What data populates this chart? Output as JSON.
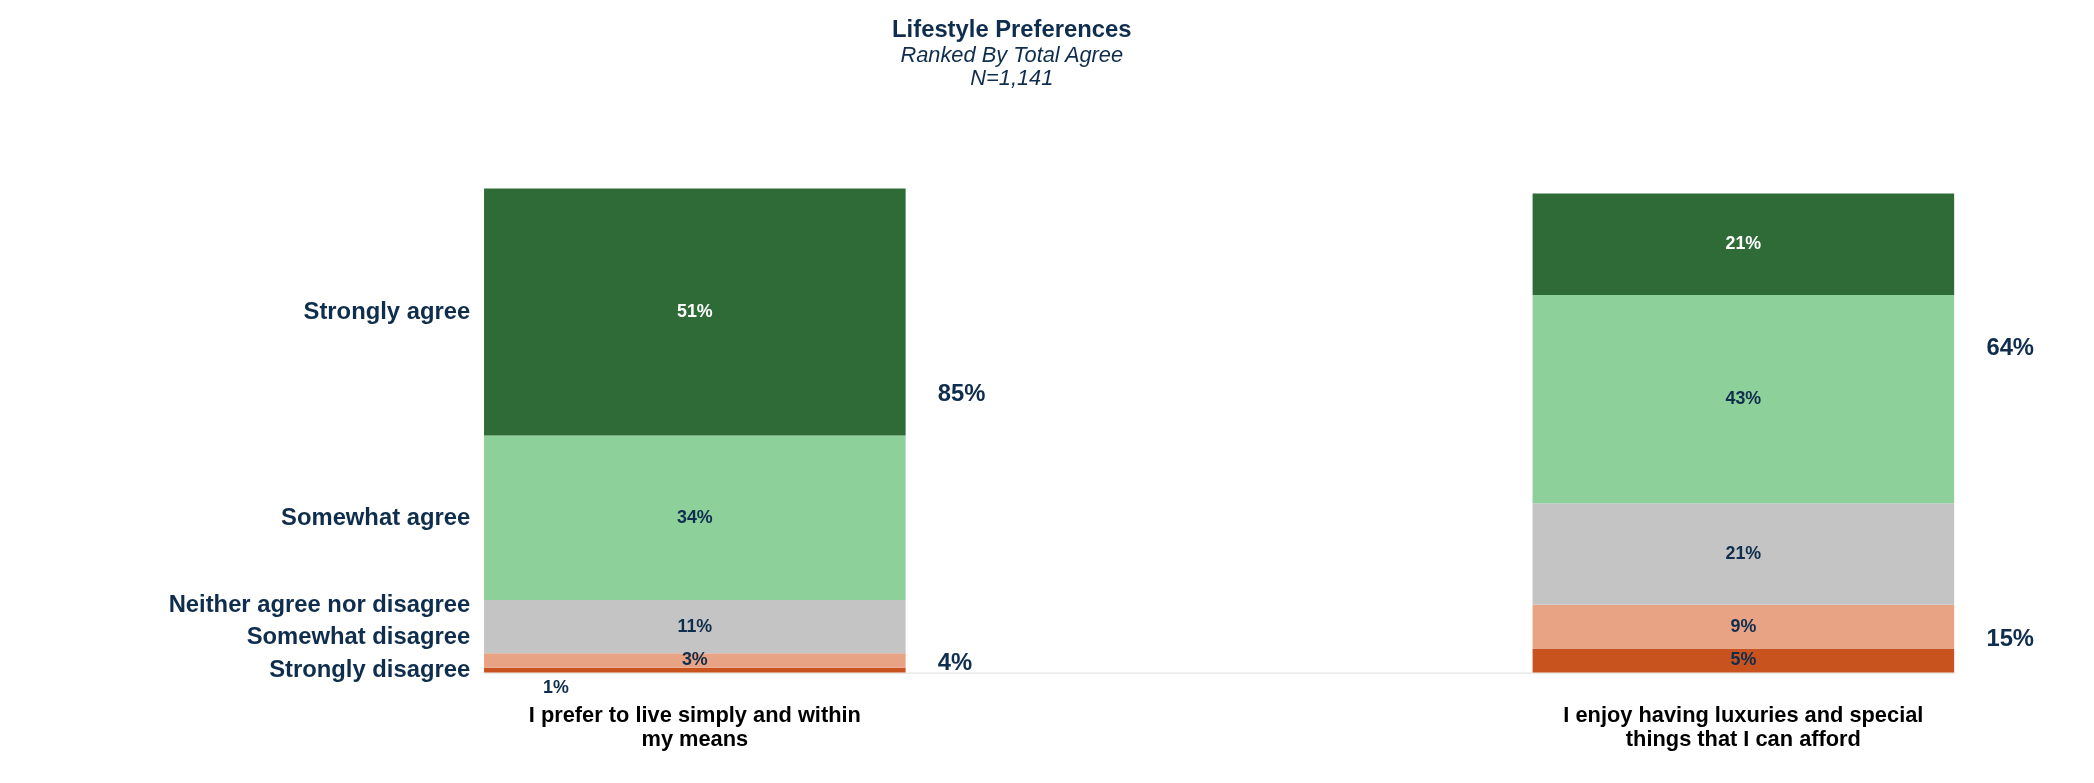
{
  "chart_data": {
    "type": "bar",
    "title": "Lifestyle Preferences",
    "subtitle": "Ranked By Total Agree",
    "stacked": true,
    "legend": "left",
    "grid": false,
    "tick_labels": "x",
    "ylim": [
      0,
      100
    ],
    "categories": [
      "I prefer to live simply and within my means",
      "I enjoy having luxuries and special things that I can afford"
    ],
    "series": [
      {
        "name": "Strongly disagree",
        "color": "#c9531f",
        "values": [
          1,
          5
        ],
        "value_labels": [
          "1%",
          "5%"
        ]
      },
      {
        "name": "Somewhat disagree",
        "color": "#e8a384",
        "values": [
          3,
          9
        ],
        "value_labels": [
          "3%",
          "9%"
        ]
      },
      {
        "name": "Neither agree nor disagree",
        "color": "#c4c4c4",
        "values": [
          11,
          21
        ],
        "value_labels": [
          "11%",
          "21%"
        ]
      },
      {
        "name": "Somewhat agree",
        "color": "#8ed09a",
        "values": [
          34,
          43
        ],
        "value_labels": [
          "34%",
          "43%"
        ]
      },
      {
        "name": "Strongly agree",
        "color": "#2e6b37",
        "values": [
          51,
          21
        ],
        "value_labels": [
          "51%",
          "21%"
        ]
      }
    ],
    "annotations": [
      "N=1,141",
      "85%",
      "4%",
      "64%",
      "15%"
    ]
  }
}
